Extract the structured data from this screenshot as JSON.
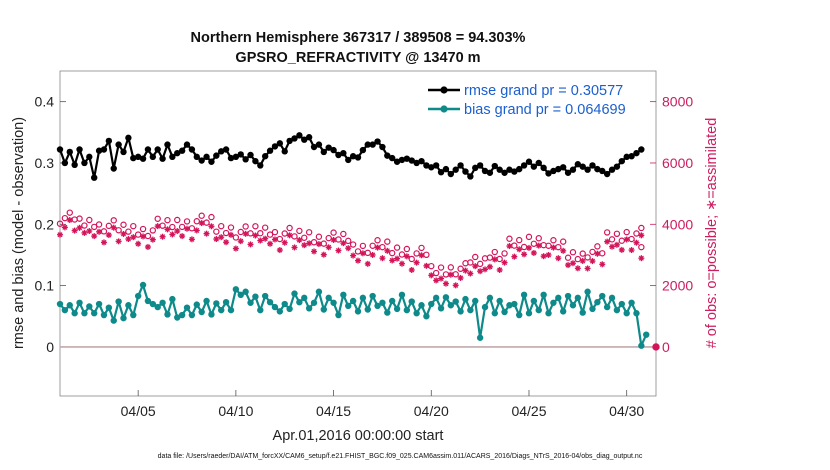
{
  "chart_data": {
    "type": "line",
    "title_line1": "Northern Hemisphere 367317 / 389508 = 94.303%",
    "title_line2": "GPSRO_REFRACTIVITY @ 13470 m",
    "xlabel": "Apr.01,2016 00:00:00 start",
    "ylabel": "rmse and bias (model - observation)",
    "ylabel_right": "# of obs: o=possible; ∗=assimilated",
    "xlim": [
      1,
      31.5
    ],
    "ylim": [
      -0.08,
      0.45
    ],
    "ylim_right": [
      -1600,
      9000
    ],
    "x_ticks": [
      {
        "value": 5,
        "label": "04/05"
      },
      {
        "value": 10,
        "label": "04/10"
      },
      {
        "value": 15,
        "label": "04/15"
      },
      {
        "value": 20,
        "label": "04/20"
      },
      {
        "value": 25,
        "label": "04/25"
      },
      {
        "value": 30,
        "label": "04/30"
      }
    ],
    "y_ticks": [
      {
        "value": 0,
        "label": "0"
      },
      {
        "value": 0.1,
        "label": "0.1"
      },
      {
        "value": 0.2,
        "label": "0.2"
      },
      {
        "value": 0.3,
        "label": "0.3"
      },
      {
        "value": 0.4,
        "label": "0.4"
      }
    ],
    "y_ticks_right": [
      {
        "value": 0,
        "label": "0"
      },
      {
        "value": 2000,
        "label": "2000"
      },
      {
        "value": 4000,
        "label": "4000"
      },
      {
        "value": 6000,
        "label": "6000"
      },
      {
        "value": 8000,
        "label": "8000"
      }
    ],
    "legend_placement": "top-right",
    "zero_line": true,
    "colors": {
      "rmse": "#000000",
      "bias": "#0f8a8a",
      "obs": "#d4145a",
      "zero": "#c0aaaa",
      "legend_text": "#1a5fd0"
    },
    "series": [
      {
        "name": "rmse grand pr = 0.30577",
        "axis": "left",
        "style": "line-marker",
        "rmse_anchors": [
          [
            1.0,
            0.322
          ],
          [
            1.25,
            0.3
          ],
          [
            1.5,
            0.318
          ],
          [
            1.75,
            0.297
          ],
          [
            2.0,
            0.322
          ],
          [
            2.25,
            0.3
          ],
          [
            2.5,
            0.31
          ],
          [
            2.75,
            0.276
          ],
          [
            3.0,
            0.32
          ],
          [
            3.25,
            0.322
          ],
          [
            3.5,
            0.336
          ],
          [
            3.75,
            0.291
          ],
          [
            4.0,
            0.33
          ],
          [
            4.25,
            0.318
          ],
          [
            4.5,
            0.341
          ],
          [
            4.75,
            0.308
          ],
          [
            5.0,
            0.31
          ],
          [
            5.25,
            0.307
          ],
          [
            5.5,
            0.322
          ],
          [
            5.75,
            0.31
          ],
          [
            6.0,
            0.322
          ],
          [
            6.25,
            0.307
          ],
          [
            6.5,
            0.33
          ],
          [
            6.75,
            0.31
          ],
          [
            7.0,
            0.316
          ],
          [
            7.25,
            0.32
          ],
          [
            7.5,
            0.33
          ],
          [
            7.75,
            0.322
          ],
          [
            8.0,
            0.31
          ],
          [
            8.25,
            0.304
          ],
          [
            8.5,
            0.31
          ],
          [
            8.75,
            0.302
          ],
          [
            9.0,
            0.312
          ],
          [
            9.25,
            0.319
          ],
          [
            9.5,
            0.322
          ],
          [
            9.75,
            0.308
          ],
          [
            10.0,
            0.31
          ],
          [
            10.25,
            0.314
          ],
          [
            10.5,
            0.306
          ],
          [
            10.75,
            0.313
          ],
          [
            11.0,
            0.303
          ],
          [
            11.25,
            0.296
          ],
          [
            11.5,
            0.311
          ],
          [
            11.75,
            0.32
          ],
          [
            12.0,
            0.327
          ],
          [
            12.25,
            0.332
          ],
          [
            12.5,
            0.319
          ],
          [
            12.75,
            0.336
          ],
          [
            13.0,
            0.34
          ],
          [
            13.25,
            0.345
          ],
          [
            13.5,
            0.338
          ],
          [
            13.75,
            0.342
          ],
          [
            14.0,
            0.326
          ],
          [
            14.25,
            0.33
          ],
          [
            14.5,
            0.318
          ],
          [
            14.75,
            0.325
          ],
          [
            15.0,
            0.321
          ],
          [
            15.25,
            0.313
          ],
          [
            15.5,
            0.316
          ],
          [
            15.75,
            0.305
          ],
          [
            16.0,
            0.311
          ],
          [
            16.25,
            0.309
          ],
          [
            16.5,
            0.321
          ],
          [
            16.75,
            0.33
          ],
          [
            17.0,
            0.33
          ],
          [
            17.25,
            0.335
          ],
          [
            17.5,
            0.326
          ],
          [
            17.75,
            0.312
          ],
          [
            18.0,
            0.308
          ],
          [
            18.25,
            0.302
          ],
          [
            18.5,
            0.305
          ],
          [
            18.75,
            0.307
          ],
          [
            19.0,
            0.304
          ],
          [
            19.25,
            0.3
          ],
          [
            19.5,
            0.303
          ],
          [
            19.75,
            0.296
          ],
          [
            20.0,
            0.293
          ],
          [
            20.25,
            0.296
          ],
          [
            20.5,
            0.285
          ],
          [
            20.75,
            0.29
          ],
          [
            21.0,
            0.282
          ],
          [
            21.25,
            0.289
          ],
          [
            21.5,
            0.296
          ],
          [
            21.75,
            0.286
          ],
          [
            22.0,
            0.278
          ],
          [
            22.25,
            0.292
          ],
          [
            22.5,
            0.296
          ],
          [
            22.75,
            0.287
          ],
          [
            23.0,
            0.284
          ],
          [
            23.25,
            0.295
          ],
          [
            23.5,
            0.289
          ],
          [
            23.75,
            0.284
          ],
          [
            24.0,
            0.289
          ],
          [
            24.25,
            0.286
          ],
          [
            24.5,
            0.29
          ],
          [
            24.75,
            0.296
          ],
          [
            25.0,
            0.302
          ],
          [
            25.25,
            0.294
          ],
          [
            25.5,
            0.3
          ],
          [
            25.75,
            0.292
          ],
          [
            26.0,
            0.283
          ],
          [
            26.25,
            0.287
          ],
          [
            26.5,
            0.29
          ],
          [
            26.75,
            0.293
          ],
          [
            27.0,
            0.284
          ],
          [
            27.25,
            0.289
          ],
          [
            27.5,
            0.298
          ],
          [
            27.75,
            0.294
          ],
          [
            28.0,
            0.289
          ],
          [
            28.25,
            0.296
          ],
          [
            28.5,
            0.29
          ],
          [
            28.75,
            0.287
          ],
          [
            29.0,
            0.282
          ],
          [
            29.25,
            0.289
          ],
          [
            29.5,
            0.294
          ],
          [
            29.75,
            0.303
          ],
          [
            30.0,
            0.31
          ],
          [
            30.25,
            0.311
          ],
          [
            30.5,
            0.316
          ],
          [
            30.75,
            0.322
          ]
        ]
      },
      {
        "name": "bias grand pr = 0.064699",
        "axis": "left",
        "style": "line-marker",
        "bias_anchors": [
          [
            1.0,
            0.07
          ],
          [
            1.25,
            0.06
          ],
          [
            1.5,
            0.068
          ],
          [
            1.75,
            0.055
          ],
          [
            2.0,
            0.072
          ],
          [
            2.25,
            0.055
          ],
          [
            2.5,
            0.066
          ],
          [
            2.75,
            0.055
          ],
          [
            3.0,
            0.07
          ],
          [
            3.25,
            0.052
          ],
          [
            3.5,
            0.064
          ],
          [
            3.75,
            0.043
          ],
          [
            4.0,
            0.074
          ],
          [
            4.25,
            0.047
          ],
          [
            4.5,
            0.068
          ],
          [
            4.75,
            0.052
          ],
          [
            5.0,
            0.083
          ],
          [
            5.25,
            0.101
          ],
          [
            5.5,
            0.075
          ],
          [
            5.75,
            0.07
          ],
          [
            6.0,
            0.065
          ],
          [
            6.25,
            0.072
          ],
          [
            6.5,
            0.053
          ],
          [
            6.75,
            0.078
          ],
          [
            7.0,
            0.048
          ],
          [
            7.25,
            0.052
          ],
          [
            7.5,
            0.064
          ],
          [
            7.75,
            0.052
          ],
          [
            8.0,
            0.069
          ],
          [
            8.25,
            0.057
          ],
          [
            8.5,
            0.075
          ],
          [
            8.75,
            0.053
          ],
          [
            9.0,
            0.071
          ],
          [
            9.25,
            0.06
          ],
          [
            9.5,
            0.073
          ],
          [
            9.75,
            0.06
          ],
          [
            10.0,
            0.094
          ],
          [
            10.25,
            0.085
          ],
          [
            10.5,
            0.09
          ],
          [
            10.75,
            0.072
          ],
          [
            11.0,
            0.082
          ],
          [
            11.25,
            0.06
          ],
          [
            11.5,
            0.083
          ],
          [
            11.75,
            0.073
          ],
          [
            12.0,
            0.065
          ],
          [
            12.25,
            0.058
          ],
          [
            12.5,
            0.07
          ],
          [
            12.75,
            0.062
          ],
          [
            13.0,
            0.087
          ],
          [
            13.25,
            0.073
          ],
          [
            13.5,
            0.08
          ],
          [
            13.75,
            0.063
          ],
          [
            14.0,
            0.072
          ],
          [
            14.25,
            0.09
          ],
          [
            14.5,
            0.061
          ],
          [
            14.75,
            0.08
          ],
          [
            15.0,
            0.072
          ],
          [
            15.25,
            0.052
          ],
          [
            15.5,
            0.085
          ],
          [
            15.75,
            0.067
          ],
          [
            16.0,
            0.075
          ],
          [
            16.25,
            0.058
          ],
          [
            16.5,
            0.08
          ],
          [
            16.75,
            0.061
          ],
          [
            17.0,
            0.083
          ],
          [
            17.25,
            0.067
          ],
          [
            17.5,
            0.072
          ],
          [
            17.75,
            0.056
          ],
          [
            18.0,
            0.075
          ],
          [
            18.25,
            0.062
          ],
          [
            18.5,
            0.085
          ],
          [
            18.75,
            0.06
          ],
          [
            19.0,
            0.074
          ],
          [
            19.25,
            0.055
          ],
          [
            19.5,
            0.068
          ],
          [
            19.75,
            0.05
          ],
          [
            20.0,
            0.07
          ],
          [
            20.25,
            0.08
          ],
          [
            20.5,
            0.063
          ],
          [
            20.75,
            0.081
          ],
          [
            21.0,
            0.068
          ],
          [
            21.25,
            0.074
          ],
          [
            21.5,
            0.058
          ],
          [
            21.75,
            0.078
          ],
          [
            22.0,
            0.06
          ],
          [
            22.25,
            0.075
          ],
          [
            22.5,
            0.015
          ],
          [
            22.75,
            0.065
          ],
          [
            23.0,
            0.08
          ],
          [
            23.25,
            0.055
          ],
          [
            23.5,
            0.075
          ],
          [
            23.75,
            0.057
          ],
          [
            24.0,
            0.068
          ],
          [
            24.25,
            0.07
          ],
          [
            24.5,
            0.052
          ],
          [
            24.75,
            0.085
          ],
          [
            25.0,
            0.055
          ],
          [
            25.25,
            0.075
          ],
          [
            25.5,
            0.06
          ],
          [
            25.75,
            0.085
          ],
          [
            26.0,
            0.055
          ],
          [
            26.25,
            0.072
          ],
          [
            26.5,
            0.08
          ],
          [
            26.75,
            0.058
          ],
          [
            27.0,
            0.083
          ],
          [
            27.25,
            0.068
          ],
          [
            27.5,
            0.08
          ],
          [
            27.75,
            0.056
          ],
          [
            28.0,
            0.09
          ],
          [
            28.25,
            0.062
          ],
          [
            28.5,
            0.073
          ],
          [
            28.75,
            0.083
          ],
          [
            29.0,
            0.065
          ],
          [
            29.25,
            0.08
          ],
          [
            29.5,
            0.06
          ],
          [
            29.75,
            0.07
          ],
          [
            30.0,
            0.055
          ],
          [
            30.25,
            0.072
          ],
          [
            30.5,
            0.055
          ],
          [
            30.75,
            0.002
          ],
          [
            31.0,
            0.02
          ]
        ]
      },
      {
        "name": "possible",
        "axis": "right",
        "style": "circle-markers",
        "obs_anchors": [
          [
            1.0,
            4200
          ],
          [
            2.0,
            4050
          ],
          [
            3.0,
            3950
          ],
          [
            4.0,
            3850
          ],
          [
            5.0,
            3800
          ],
          [
            6.0,
            4000
          ],
          [
            7.0,
            4050
          ],
          [
            8.0,
            4100
          ],
          [
            9.0,
            3850
          ],
          [
            10.0,
            3750
          ],
          [
            11.0,
            3800
          ],
          [
            12.0,
            3700
          ],
          [
            13.0,
            3650
          ],
          [
            14.0,
            3550
          ],
          [
            15.0,
            3550
          ],
          [
            16.0,
            3250
          ],
          [
            17.0,
            3300
          ],
          [
            18.0,
            3150
          ],
          [
            19.0,
            3050
          ],
          [
            20.0,
            2500
          ],
          [
            21.0,
            2550
          ],
          [
            22.0,
            2800
          ],
          [
            23.0,
            3050
          ],
          [
            24.0,
            3350
          ],
          [
            25.0,
            3500
          ],
          [
            26.0,
            3300
          ],
          [
            27.0,
            3000
          ],
          [
            28.0,
            3100
          ],
          [
            29.0,
            3600
          ],
          [
            30.0,
            3700
          ],
          [
            30.75,
            3300
          ]
        ]
      },
      {
        "name": "assimilated",
        "axis": "right",
        "style": "asterisk-markers",
        "assim_offset": -300
      }
    ]
  }
}
